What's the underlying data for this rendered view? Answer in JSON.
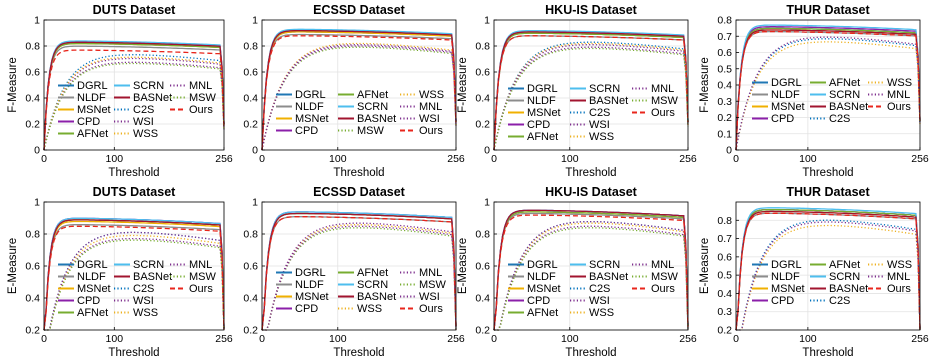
{
  "chart_data": [
    {
      "type": "line",
      "title": "DUTS Dataset",
      "xlabel": "Threshold",
      "ylabel": "F-Measure",
      "xlim": [
        0,
        256
      ],
      "ylim": [
        0,
        1
      ],
      "xticks": [
        0,
        100,
        256
      ],
      "yticks": [
        "0",
        "0.2",
        "0.4",
        "0.6",
        "0.8",
        "1"
      ],
      "legend_ncol": 3,
      "series": [
        {
          "name": "DGRL",
          "peak": 0.83
        },
        {
          "name": "NLDF",
          "peak": 0.8
        },
        {
          "name": "MSNet",
          "peak": 0.82
        },
        {
          "name": "CPD",
          "peak": 0.83
        },
        {
          "name": "AFNet",
          "peak": 0.82
        },
        {
          "name": "SCRN",
          "peak": 0.84
        },
        {
          "name": "BASNet",
          "peak": 0.83
        },
        {
          "name": "C2S",
          "peak": 0.76
        },
        {
          "name": "WSI",
          "peak": 0.73
        },
        {
          "name": "WSS",
          "peak": 0.74
        },
        {
          "name": "MNL",
          "peak": 0.7
        },
        {
          "name": "MSW",
          "peak": 0.69
        },
        {
          "name": "Ours",
          "peak": 0.77
        }
      ]
    },
    {
      "type": "line",
      "title": "ECSSD Dataset",
      "xlabel": "Threshold",
      "ylabel": "",
      "xlim": [
        0,
        256
      ],
      "ylim": [
        0,
        1
      ],
      "xticks": [
        0,
        100,
        256
      ],
      "yticks": [
        "0",
        "0.2",
        "0.4",
        "0.6",
        "0.8",
        "1"
      ],
      "legend_ncol": 3,
      "series": [
        {
          "name": "DGRL",
          "peak": 0.91
        },
        {
          "name": "NLDF",
          "peak": 0.89
        },
        {
          "name": "MSNet",
          "peak": 0.91
        },
        {
          "name": "CPD",
          "peak": 0.92
        },
        {
          "name": "AFNet",
          "peak": 0.92
        },
        {
          "name": "SCRN",
          "peak": 0.93
        },
        {
          "name": "BASNet",
          "peak": 0.92
        },
        {
          "name": "MSW",
          "peak": 0.82
        },
        {
          "name": "WSS",
          "peak": 0.85
        },
        {
          "name": "MNL",
          "peak": 0.84
        },
        {
          "name": "WSI",
          "peak": 0.83
        },
        {
          "name": "Ours",
          "peak": 0.88
        }
      ]
    },
    {
      "type": "line",
      "title": "HKU-IS Dataset",
      "xlabel": "Threshold",
      "ylabel": "F-Measure",
      "xlim": [
        0,
        256
      ],
      "ylim": [
        0,
        1
      ],
      "xticks": [
        0,
        100,
        256
      ],
      "yticks": [
        "0",
        "0.2",
        "0.4",
        "0.6",
        "0.8",
        "1"
      ],
      "legend_ncol": 3,
      "series": [
        {
          "name": "DGRL",
          "peak": 0.9
        },
        {
          "name": "NLDF",
          "peak": 0.88
        },
        {
          "name": "MSNet",
          "peak": 0.9
        },
        {
          "name": "CPD",
          "peak": 0.91
        },
        {
          "name": "AFNet",
          "peak": 0.9
        },
        {
          "name": "SCRN",
          "peak": 0.92
        },
        {
          "name": "BASNet",
          "peak": 0.91
        },
        {
          "name": "C2S",
          "peak": 0.86
        },
        {
          "name": "WSI",
          "peak": 0.82
        },
        {
          "name": "WSS",
          "peak": 0.85
        },
        {
          "name": "MNL",
          "peak": 0.84
        },
        {
          "name": "MSW",
          "peak": 0.81
        },
        {
          "name": "Ours",
          "peak": 0.88
        }
      ]
    },
    {
      "type": "line",
      "title": "THUR Dataset",
      "xlabel": "Threshold",
      "ylabel": "F-Measure",
      "xlim": [
        0,
        256
      ],
      "ylim": [
        0,
        0.8
      ],
      "xticks": [
        0,
        100,
        256
      ],
      "yticks": [
        "0",
        "0.1",
        "0.2",
        "0.3",
        "0.4",
        "0.5",
        "0.6",
        "0.7",
        "0.8"
      ],
      "legend_ncol": 3,
      "series": [
        {
          "name": "DGRL",
          "peak": 0.75
        },
        {
          "name": "NLDF",
          "peak": 0.73
        },
        {
          "name": "MSNet",
          "peak": 0.74
        },
        {
          "name": "CPD",
          "peak": 0.76
        },
        {
          "name": "AFNet",
          "peak": 0.75
        },
        {
          "name": "SCRN",
          "peak": 0.77
        },
        {
          "name": "BASNet",
          "peak": 0.74
        },
        {
          "name": "C2S",
          "peak": 0.71
        },
        {
          "name": "WSS",
          "peak": 0.69
        },
        {
          "name": "MNL",
          "peak": 0.72
        },
        {
          "name": "Ours",
          "peak": 0.73
        }
      ]
    },
    {
      "type": "line",
      "title": "DUTS Dataset",
      "xlabel": "Threshold",
      "ylabel": "E-Measure",
      "xlim": [
        0,
        256
      ],
      "ylim": [
        0.2,
        1
      ],
      "xticks": [
        0,
        100,
        256
      ],
      "yticks": [
        "0.2",
        "0.4",
        "0.6",
        "0.8",
        "1"
      ],
      "legend_ncol": 3,
      "series": [
        {
          "name": "DGRL",
          "peak": 0.89
        },
        {
          "name": "NLDF",
          "peak": 0.86
        },
        {
          "name": "MSNet",
          "peak": 0.88
        },
        {
          "name": "CPD",
          "peak": 0.9
        },
        {
          "name": "AFNet",
          "peak": 0.89
        },
        {
          "name": "SCRN",
          "peak": 0.9
        },
        {
          "name": "BASNet",
          "peak": 0.89
        },
        {
          "name": "C2S",
          "peak": 0.84
        },
        {
          "name": "WSI",
          "peak": 0.8
        },
        {
          "name": "WSS",
          "peak": 0.82
        },
        {
          "name": "MNL",
          "peak": 0.84
        },
        {
          "name": "MSW",
          "peak": 0.79
        },
        {
          "name": "Ours",
          "peak": 0.85
        }
      ]
    },
    {
      "type": "line",
      "title": "ECSSD Dataset",
      "xlabel": "Threshold",
      "ylabel": "",
      "xlim": [
        0,
        256
      ],
      "ylim": [
        0.2,
        1
      ],
      "xticks": [
        0,
        100,
        256
      ],
      "yticks": [
        "0.2",
        "0.4",
        "0.6",
        "0.8",
        "1"
      ],
      "legend_ncol": 3,
      "series": [
        {
          "name": "DGRL",
          "peak": 0.93
        },
        {
          "name": "NLDF",
          "peak": 0.91
        },
        {
          "name": "MSNet",
          "peak": 0.93
        },
        {
          "name": "CPD",
          "peak": 0.94
        },
        {
          "name": "AFNet",
          "peak": 0.93
        },
        {
          "name": "SCRN",
          "peak": 0.94
        },
        {
          "name": "BASNet",
          "peak": 0.93
        },
        {
          "name": "WSS",
          "peak": 0.89
        },
        {
          "name": "MNL",
          "peak": 0.9
        },
        {
          "name": "MSW",
          "peak": 0.87
        },
        {
          "name": "WSI",
          "peak": 0.88
        },
        {
          "name": "Ours",
          "peak": 0.91
        }
      ]
    },
    {
      "type": "line",
      "title": "HKU-IS Dataset",
      "xlabel": "Threshold",
      "ylabel": "E-Measure",
      "xlim": [
        0,
        256
      ],
      "ylim": [
        0.2,
        1
      ],
      "xticks": [
        0,
        100,
        256
      ],
      "yticks": [
        "0.2",
        "0.4",
        "0.6",
        "0.8",
        "1"
      ],
      "legend_ncol": 3,
      "series": [
        {
          "name": "DGRL",
          "peak": 0.95
        },
        {
          "name": "NLDF",
          "peak": 0.93
        },
        {
          "name": "MSNet",
          "peak": 0.94
        },
        {
          "name": "CPD",
          "peak": 0.95
        },
        {
          "name": "AFNet",
          "peak": 0.94
        },
        {
          "name": "SCRN",
          "peak": 0.95
        },
        {
          "name": "BASNet",
          "peak": 0.95
        },
        {
          "name": "C2S",
          "peak": 0.91
        },
        {
          "name": "WSI",
          "peak": 0.88
        },
        {
          "name": "WSS",
          "peak": 0.9
        },
        {
          "name": "MNL",
          "peak": 0.91
        },
        {
          "name": "MSW",
          "peak": 0.87
        },
        {
          "name": "Ours",
          "peak": 0.92
        }
      ]
    },
    {
      "type": "line",
      "title": "THUR Dataset",
      "xlabel": "Threshold",
      "ylabel": "E-Measure",
      "xlim": [
        0,
        256
      ],
      "ylim": [
        0.2,
        0.9
      ],
      "xticks": [
        0,
        100,
        256
      ],
      "yticks": [
        "0.2",
        "0.3",
        "0.4",
        "0.5",
        "0.6",
        "0.7",
        "0.8"
      ],
      "legend_ncol": 3,
      "series": [
        {
          "name": "DGRL",
          "peak": 0.86
        },
        {
          "name": "NLDF",
          "peak": 0.84
        },
        {
          "name": "MSNet",
          "peak": 0.85
        },
        {
          "name": "CPD",
          "peak": 0.86
        },
        {
          "name": "AFNet",
          "peak": 0.86
        },
        {
          "name": "SCRN",
          "peak": 0.87
        },
        {
          "name": "BASNet",
          "peak": 0.85
        },
        {
          "name": "C2S",
          "peak": 0.83
        },
        {
          "name": "WSS",
          "peak": 0.8
        },
        {
          "name": "MNL",
          "peak": 0.82
        },
        {
          "name": "Ours",
          "peak": 0.84
        }
      ]
    }
  ],
  "method_styles": {
    "DGRL": {
      "color": "#1f77b4",
      "dash": "solid"
    },
    "NLDF": {
      "color": "#8c8c8c",
      "dash": "solid"
    },
    "MSNet": {
      "color": "#f0b000",
      "dash": "solid"
    },
    "CPD": {
      "color": "#8b1fa9",
      "dash": "solid"
    },
    "AFNet": {
      "color": "#77ac30",
      "dash": "solid"
    },
    "SCRN": {
      "color": "#4dbeee",
      "dash": "solid"
    },
    "BASNet": {
      "color": "#a2142f",
      "dash": "solid"
    },
    "C2S": {
      "color": "#0072bd",
      "dash": "dotted"
    },
    "WSI": {
      "color": "#7e2f8e",
      "dash": "dotted"
    },
    "WSS": {
      "color": "#edb120",
      "dash": "dotted"
    },
    "MNL": {
      "color": "#7e2f8e",
      "dash": "dotted"
    },
    "MSW": {
      "color": "#77ac30",
      "dash": "dotted"
    },
    "Ours": {
      "color": "#e8261c",
      "dash": "dashed"
    }
  }
}
